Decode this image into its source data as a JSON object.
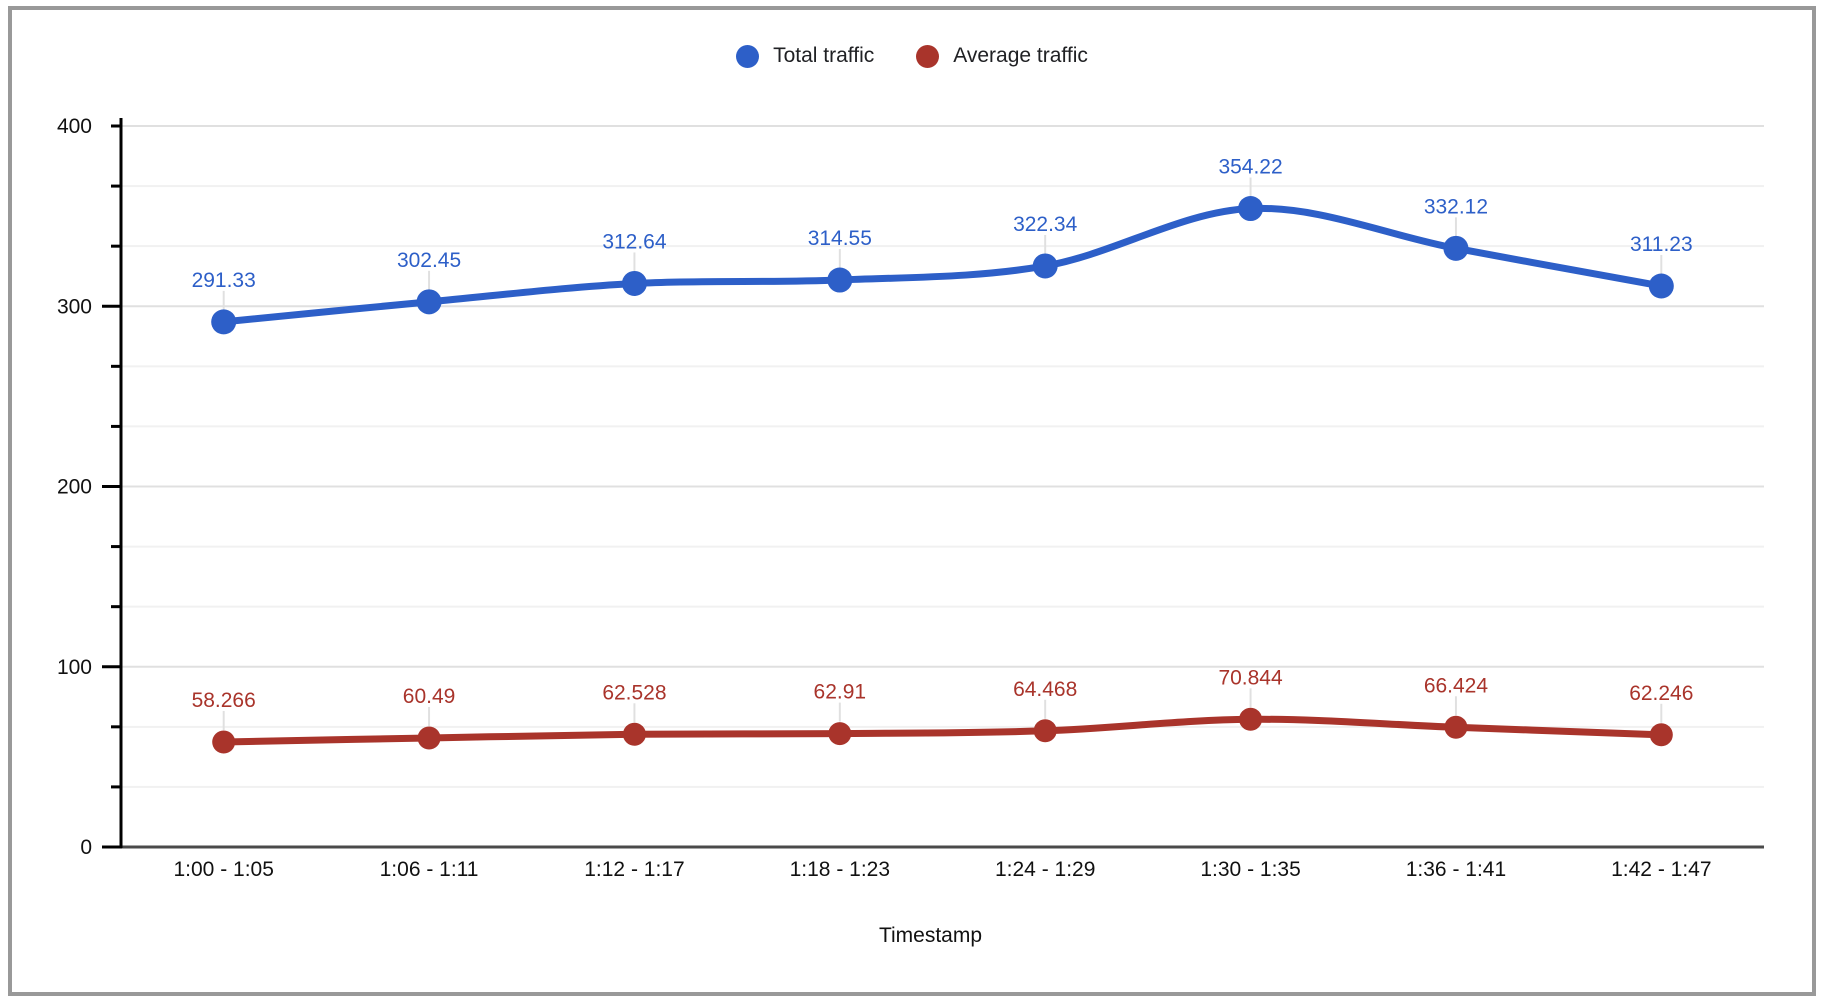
{
  "frame": {
    "background": "#ffffff",
    "border_color": "#999999"
  },
  "chart_data": {
    "type": "line",
    "smooth": true,
    "point_labels_visible": true,
    "legend_position": "top",
    "xlabel": "Timestamp",
    "ylabel": "",
    "categories": [
      "1:00 - 1:05",
      "1:06 - 1:11",
      "1:12 - 1:17",
      "1:18 - 1:23",
      "1:24 - 1:29",
      "1:30 - 1:35",
      "1:36 - 1:41",
      "1:42 - 1:47"
    ],
    "series": [
      {
        "name": "Total traffic",
        "color": "#2d5fc8",
        "values": [
          291.33,
          302.45,
          312.64,
          314.55,
          322.34,
          354.22,
          332.12,
          311.23
        ],
        "labels": [
          "291.33",
          "302.45",
          "312.64",
          "314.55",
          "322.34",
          "354.22",
          "332.12",
          "311.23"
        ]
      },
      {
        "name": "Average traffic",
        "color": "#a9342b",
        "values": [
          58.266,
          60.49,
          62.528,
          62.91,
          64.468,
          70.844,
          66.424,
          62.246
        ],
        "labels": [
          "58.266",
          "60.49",
          "62.528",
          "62.91",
          "64.468",
          "70.844",
          "66.424",
          "62.246"
        ]
      }
    ],
    "y_axis": {
      "min": 0,
      "max": 400,
      "major_ticks": [
        0,
        100,
        200,
        300,
        400
      ],
      "tick_labels": [
        "0",
        "100",
        "200",
        "300",
        "400"
      ],
      "minor_divisions_per_major": 3
    },
    "x_axis": {
      "title": "Timestamp"
    },
    "style": {
      "major_grid_color": "#e0e0e0",
      "minor_grid_color": "#f1f1f1",
      "baseline_color": "#4a4a4a",
      "axis_tick_color": "#000000",
      "axis_text_color": "#111111",
      "leader_line_color": "#e0e0e0"
    }
  }
}
